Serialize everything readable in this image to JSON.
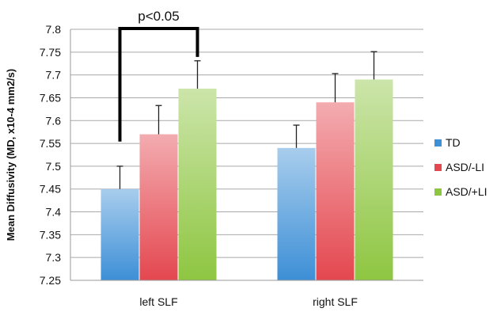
{
  "chart_data": {
    "type": "bar",
    "categories": [
      "left SLF",
      "right SLF"
    ],
    "series": [
      {
        "name": "TD",
        "values": [
          7.45,
          7.54
        ],
        "errors": [
          0.05,
          0.05
        ],
        "color": "#3d8fd6"
      },
      {
        "name": "ASD/-LI",
        "values": [
          7.57,
          7.64
        ],
        "errors": [
          0.063,
          0.063
        ],
        "color": "#e4474f"
      },
      {
        "name": "ASD/+LI",
        "values": [
          7.67,
          7.69
        ],
        "errors": [
          0.061,
          0.061
        ],
        "color": "#8ec641"
      }
    ],
    "ylabel": "Mean Diffusivity (MD, x10-4 mm2/s)",
    "ylim": [
      7.25,
      7.8
    ],
    "yticks": [
      "7.25",
      "7.3",
      "7.35",
      "7.4",
      "7.45",
      "7.5",
      "7.55",
      "7.6",
      "7.65",
      "7.7",
      "7.75",
      "7.8"
    ],
    "grid": true,
    "legend_position": "right",
    "annotation": {
      "text": "p<0.05",
      "from_series": 0,
      "to_series": 2,
      "category": 0
    }
  }
}
